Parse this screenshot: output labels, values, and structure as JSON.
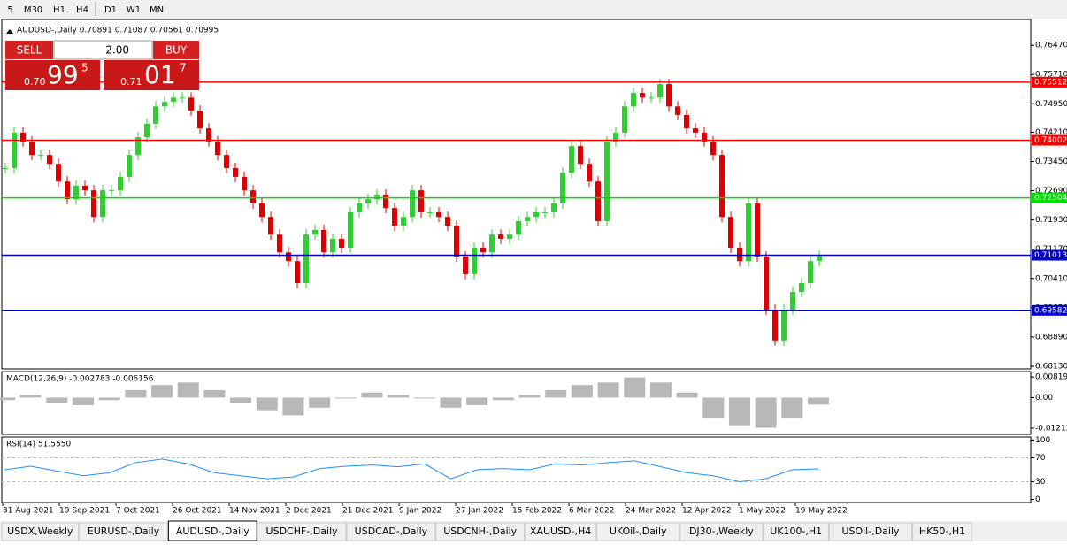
{
  "toolbar": {
    "timeframes": [
      "5",
      "M30",
      "H1",
      "H4",
      "D1",
      "W1",
      "MN"
    ]
  },
  "chart": {
    "header": "AUDUSD-,Daily  0.70891 0.71087 0.70561 0.70995",
    "trade": {
      "sell": "SELL",
      "lots": "2.00",
      "buy": "BUY",
      "bid_prefix": "0.70",
      "bid_big": "99",
      "bid_pip": "5",
      "ask_prefix": "0.71",
      "ask_big": "01",
      "ask_pip": "7"
    },
    "ylim": [
      0.6806,
      0.7714
    ],
    "yticks": [
      {
        "value": 0.7647,
        "label": "0.76470"
      },
      {
        "value": 0.7571,
        "label": "0.75710"
      },
      {
        "value": 0.7495,
        "label": "0.74950"
      },
      {
        "value": 0.7421,
        "label": "0.74210"
      },
      {
        "value": 0.7345,
        "label": "0.73450"
      },
      {
        "value": 0.7269,
        "label": "0.72690"
      },
      {
        "value": 0.7193,
        "label": "0.71930"
      },
      {
        "value": 0.7117,
        "label": "0.71170"
      },
      {
        "value": 0.7041,
        "label": "0.70410"
      },
      {
        "value": 0.6965,
        "label": "0.69650"
      },
      {
        "value": 0.6889,
        "label": "0.68890"
      },
      {
        "value": 0.6813,
        "label": "0.68130"
      }
    ],
    "levels": [
      {
        "value": 0.75512,
        "color": "#ff0000"
      },
      {
        "value": 0.74002,
        "color": "#ff0000"
      },
      {
        "value": 0.72504,
        "color": "#00dd00"
      },
      {
        "value": 0.71013,
        "color": "#0000cc"
      },
      {
        "value": 0.69582,
        "color": "#0000cc"
      }
    ],
    "up_color": "#32cd32",
    "down_color": "#dd0000",
    "closes": [
      0.7328,
      0.742,
      0.7397,
      0.7362,
      0.7362,
      0.7339,
      0.7293,
      0.7247,
      0.7282,
      0.727,
      0.7201,
      0.727,
      0.727,
      0.7305,
      0.7362,
      0.7408,
      0.7443,
      0.7488,
      0.75,
      0.7511,
      0.7511,
      0.7477,
      0.7431,
      0.7397,
      0.7362,
      0.7328,
      0.7305,
      0.727,
      0.7236,
      0.7201,
      0.7155,
      0.7109,
      0.7086,
      0.7029,
      0.7155,
      0.7167,
      0.7109,
      0.7144,
      0.7121,
      0.7213,
      0.7236,
      0.7247,
      0.7259,
      0.7224,
      0.7178,
      0.7201,
      0.727,
      0.7213,
      0.7213,
      0.7201,
      0.7178,
      0.7098,
      0.7052,
      0.7121,
      0.7109,
      0.7155,
      0.7144,
      0.7155,
      0.719,
      0.7201,
      0.7213,
      0.7213,
      0.7236,
      0.7316,
      0.7385,
      0.7339,
      0.7293,
      0.719,
      0.7397,
      0.742,
      0.7488,
      0.7523,
      0.7511,
      0.7511,
      0.7546,
      0.7488,
      0.7466,
      0.7431,
      0.742,
      0.7397,
      0.7362,
      0.7201,
      0.7121,
      0.7086,
      0.7236,
      0.7098,
      0.696,
      0.688,
      0.696,
      0.7006,
      0.7029,
      0.7086,
      0.70995
    ],
    "dates": [
      "31 Aug 2021",
      "19 Sep 2021",
      "7 Oct 2021",
      "26 Oct 2021",
      "14 Nov 2021",
      "2 Dec 2021",
      "21 Dec 2021",
      "9 Jan 2022",
      "27 Jan 2022",
      "15 Feb 2022",
      "6 Mar 2022",
      "24 Mar 2022",
      "12 Apr 2022",
      "1 May 2022",
      "19 May 2022"
    ]
  },
  "macd": {
    "title": "MACD(12,26,9) -0.002783 -0.006156",
    "ylim": [
      -0.01461,
      0.01034
    ],
    "yticks": [
      {
        "value": 0.008197,
        "label": "0.008197"
      },
      {
        "value": 0,
        "label": "0.00"
      },
      {
        "value": -0.01212,
        "label": "-0.01212"
      }
    ],
    "values": [
      -0.001,
      0.001,
      -0.002,
      -0.003,
      -0.001,
      0.003,
      0.005,
      0.006,
      0.003,
      -0.002,
      -0.005,
      -0.007,
      -0.004,
      0.0,
      0.002,
      0.001,
      0.0,
      -0.004,
      -0.003,
      -0.001,
      0.001,
      0.003,
      0.005,
      0.006,
      0.008,
      0.006,
      0.002,
      -0.008,
      -0.011,
      -0.012,
      -0.008,
      -0.002783
    ]
  },
  "rsi": {
    "title": "RSI(14) 51.5550",
    "ylim": [
      -5,
      105
    ],
    "yticks": [
      100,
      70,
      30,
      0
    ],
    "values": [
      50,
      56,
      48,
      40,
      45,
      62,
      68,
      60,
      45,
      40,
      35,
      38,
      52,
      56,
      58,
      55,
      60,
      35,
      50,
      52,
      50,
      60,
      58,
      62,
      65,
      55,
      45,
      40,
      30,
      35,
      50,
      51.555
    ]
  },
  "tabs": {
    "items": [
      "USDX,Weekly",
      "EURUSD-,Daily",
      "AUDUSD-,Daily",
      "USDCHF-,Daily",
      "USDCAD-,Daily",
      "USDCNH-,Daily",
      "XAUUSD-,H4",
      "UKOil-,Daily",
      "DJ30-,Weekly",
      "UK100-,H1",
      "USOil-,Daily",
      "HK50-,H1"
    ],
    "active": 2
  }
}
